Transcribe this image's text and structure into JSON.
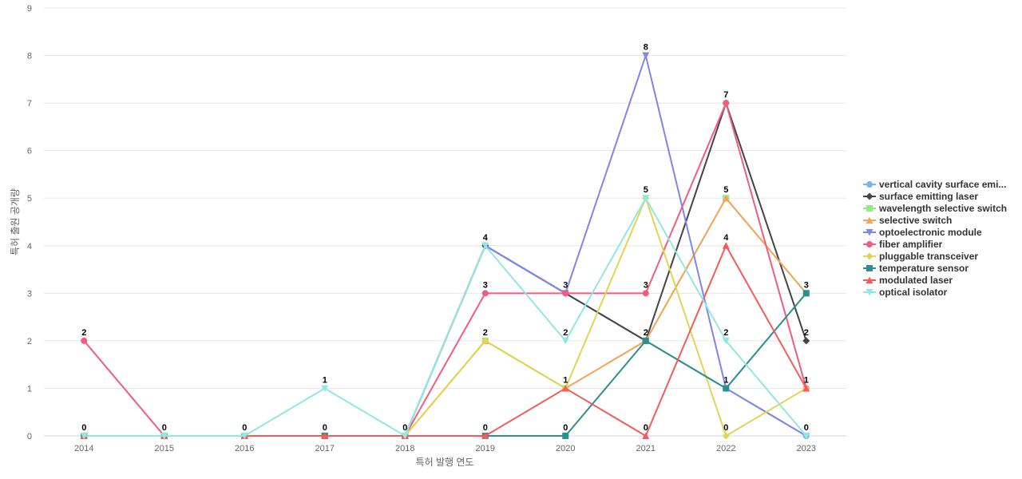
{
  "chart_data": {
    "type": "line",
    "xlabel": "특허 발행 연도",
    "ylabel": "특허 출원 공개량",
    "ylim": [
      0,
      9
    ],
    "yticks": [
      0,
      1,
      2,
      3,
      4,
      5,
      6,
      7,
      8,
      9
    ],
    "grid": true,
    "legend_position": "right",
    "categories": [
      "2014",
      "2015",
      "2016",
      "2017",
      "2018",
      "2019",
      "2020",
      "2021",
      "2022",
      "2023"
    ],
    "series": [
      {
        "name": "vertical cavity surface emi...",
        "color": "#7cb5ec",
        "marker": "circle",
        "values": [
          0,
          0,
          0,
          0,
          0,
          4,
          3,
          2,
          1,
          0
        ]
      },
      {
        "name": "surface emitting laser",
        "color": "#434348",
        "marker": "diamond",
        "values": [
          0,
          0,
          0,
          0,
          0,
          4,
          3,
          2,
          7,
          2
        ]
      },
      {
        "name": "wavelength selective switch",
        "color": "#90ed7d",
        "marker": "square",
        "values": [
          0,
          0,
          0,
          0,
          0,
          2,
          1,
          2,
          5,
          3
        ]
      },
      {
        "name": "selective switch",
        "color": "#f7a35c",
        "marker": "triangle",
        "values": [
          0,
          0,
          0,
          0,
          0,
          2,
          1,
          2,
          5,
          3
        ]
      },
      {
        "name": "optoelectronic module",
        "color": "#8085e9",
        "marker": "triangle-down",
        "values": [
          0,
          0,
          0,
          0,
          0,
          4,
          3,
          8,
          1,
          0
        ]
      },
      {
        "name": "fiber amplifier",
        "color": "#f15c80",
        "marker": "circle",
        "values": [
          2,
          0,
          0,
          0,
          0,
          3,
          3,
          3,
          7,
          1
        ]
      },
      {
        "name": "pluggable transceiver",
        "color": "#e4d354",
        "marker": "diamond",
        "values": [
          0,
          0,
          0,
          0,
          0,
          2,
          1,
          5,
          0,
          1
        ]
      },
      {
        "name": "temperature sensor",
        "color": "#2b908f",
        "marker": "square",
        "values": [
          0,
          0,
          0,
          0,
          0,
          0,
          0,
          2,
          1,
          3
        ]
      },
      {
        "name": "modulated laser",
        "color": "#f45b5b",
        "marker": "triangle",
        "values": [
          0,
          0,
          0,
          0,
          0,
          0,
          1,
          0,
          4,
          1
        ]
      },
      {
        "name": "optical isolator",
        "color": "#91e8e1",
        "marker": "triangle-down",
        "values": [
          0,
          0,
          0,
          1,
          0,
          4,
          2,
          5,
          2,
          0
        ]
      }
    ],
    "data_labels": [
      {
        "x": "2014",
        "value": 2,
        "series": "fiber amplifier"
      },
      {
        "x": "2014",
        "value": 0,
        "series": "vertical cavity surface emi..."
      },
      {
        "x": "2015",
        "value": 0,
        "series": "vertical cavity surface emi..."
      },
      {
        "x": "2016",
        "value": 0,
        "series": "vertical cavity surface emi..."
      },
      {
        "x": "2017",
        "value": 1,
        "series": "optical isolator"
      },
      {
        "x": "2017",
        "value": 0,
        "series": "vertical cavity surface emi..."
      },
      {
        "x": "2018",
        "value": 0,
        "series": "vertical cavity surface emi..."
      },
      {
        "x": "2019",
        "value": 4,
        "series": "vertical cavity surface emi..."
      },
      {
        "x": "2019",
        "value": 3,
        "series": "fiber amplifier"
      },
      {
        "x": "2019",
        "value": 2,
        "series": "wavelength selective switch"
      },
      {
        "x": "2019",
        "value": 0,
        "series": "temperature sensor"
      },
      {
        "x": "2020",
        "value": 3,
        "series": "vertical cavity surface emi..."
      },
      {
        "x": "2020",
        "value": 2,
        "series": "optical isolator"
      },
      {
        "x": "2020",
        "value": 1,
        "series": "wavelength selective switch"
      },
      {
        "x": "2020",
        "value": 0,
        "series": "temperature sensor"
      },
      {
        "x": "2021",
        "value": 8,
        "series": "optoelectronic module"
      },
      {
        "x": "2021",
        "value": 5,
        "series": "pluggable transceiver"
      },
      {
        "x": "2021",
        "value": 3,
        "series": "fiber amplifier"
      },
      {
        "x": "2021",
        "value": 2,
        "series": "vertical cavity surface emi..."
      },
      {
        "x": "2021",
        "value": 0,
        "series": "modulated laser"
      },
      {
        "x": "2022",
        "value": 7,
        "series": "surface emitting laser"
      },
      {
        "x": "2022",
        "value": 5,
        "series": "wavelength selective switch"
      },
      {
        "x": "2022",
        "value": 4,
        "series": "modulated laser"
      },
      {
        "x": "2022",
        "value": 2,
        "series": "optical isolator"
      },
      {
        "x": "2022",
        "value": 1,
        "series": "vertical cavity surface emi..."
      },
      {
        "x": "2022",
        "value": 0,
        "series": "pluggable transceiver"
      },
      {
        "x": "2023",
        "value": 3,
        "series": "wavelength selective switch"
      },
      {
        "x": "2023",
        "value": 2,
        "series": "surface emitting laser"
      },
      {
        "x": "2023",
        "value": 1,
        "series": "fiber amplifier"
      },
      {
        "x": "2023",
        "value": 0,
        "series": "vertical cavity surface emi..."
      }
    ]
  }
}
